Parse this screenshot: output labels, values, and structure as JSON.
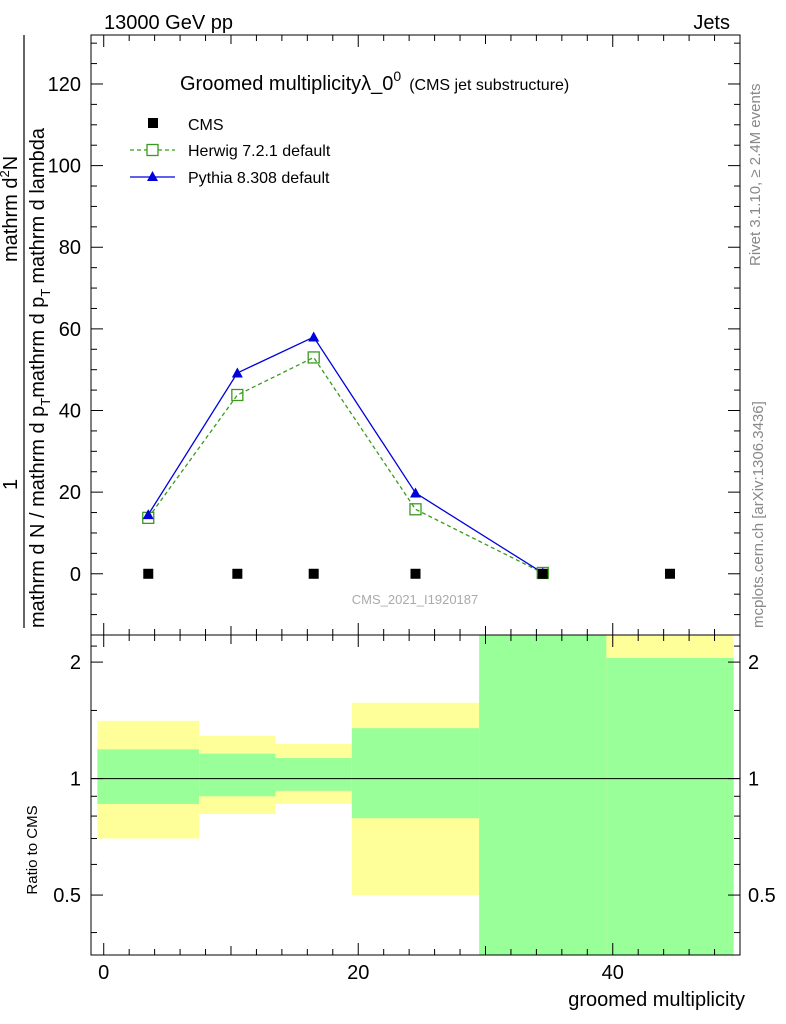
{
  "header": {
    "energy_label": "13000 GeV pp",
    "process_label": "Jets"
  },
  "side_text": {
    "rivet": "Rivet 3.1.10, ≥ 2.4M events",
    "mcplots": "mcplots.cern.ch [arXiv:1306.3436]"
  },
  "watermark": "CMS_2021_I1920187",
  "colors": {
    "cms": "#000000",
    "herwig": "#3a9a1f",
    "pythia": "#0000dd",
    "band_inner": "#99ff99",
    "band_outer": "#ffff99",
    "ratio_line": "#000000"
  },
  "chart_data": [
    {
      "type": "line",
      "title_main": "Groomed multiplicityλ_0",
      "title_sup": "0",
      "title_sub": "(CMS jet substructure)",
      "ylabel_top": "1",
      "ylabel_bottom": "mathrm d N / mathrm d p",
      "ylabel_bottom_sub": "T",
      "ylabel_bottom_cont": "mathrm d p",
      "ylabel_bottom_cont_sub": "T",
      "ylabel_bottom_end": "mathrm d lambda",
      "ylabel_numer": "mathrm d",
      "ylabel_numer_sup": "2",
      "ylabel_numer_end": "N",
      "xlim": [
        -1,
        50
      ],
      "ylim": [
        -15,
        132
      ],
      "yticks": [
        0,
        20,
        40,
        60,
        80,
        100,
        120
      ],
      "ytick_labels": [
        "0",
        "20",
        "40",
        "60",
        "80",
        "100",
        "120"
      ],
      "legend": [
        "CMS",
        "Herwig 7.2.1 default",
        "Pythia 8.308 default"
      ],
      "series": [
        {
          "name": "CMS",
          "x": [
            3.5,
            10.5,
            16.5,
            24.5,
            34.5,
            44.5
          ],
          "values": [
            0,
            0,
            0,
            0,
            0,
            0
          ]
        },
        {
          "name": "Herwig 7.2.1 default",
          "x": [
            3.5,
            10.5,
            16.5,
            24.5,
            34.5
          ],
          "values": [
            13.7,
            43.8,
            53.0,
            15.8,
            0.2
          ]
        },
        {
          "name": "Pythia 8.308 default",
          "x": [
            3.5,
            10.5,
            16.5,
            24.5,
            34.5
          ],
          "values": [
            14.5,
            49.2,
            58.0,
            19.8,
            0.2
          ]
        }
      ]
    },
    {
      "type": "area",
      "ylabel": "Ratio to CMS",
      "xlabel": "groomed multiplicity",
      "xlim": [
        -1,
        50
      ],
      "ylim": [
        0.35,
        2.35
      ],
      "xticks": [
        0,
        20,
        40
      ],
      "xtick_labels": [
        "0",
        "20",
        "40"
      ],
      "yticks": [
        0.5,
        1,
        2
      ],
      "ytick_labels": [
        "0.5",
        "1",
        "2"
      ],
      "ratio_line": 1,
      "bins": [
        {
          "lo": -0.5,
          "hi": 7.5,
          "inner": [
            0.86,
            1.19
          ],
          "outer": [
            0.7,
            1.41
          ]
        },
        {
          "lo": 7.5,
          "hi": 13.5,
          "inner": [
            0.9,
            1.16
          ],
          "outer": [
            0.81,
            1.29
          ]
        },
        {
          "lo": 13.5,
          "hi": 19.5,
          "inner": [
            0.93,
            1.13
          ],
          "outer": [
            0.86,
            1.23
          ]
        },
        {
          "lo": 19.5,
          "hi": 29.5,
          "inner": [
            0.79,
            1.35
          ],
          "outer": [
            0.5,
            1.57
          ]
        },
        {
          "lo": 29.5,
          "hi": 39.5,
          "inner": [
            0.35,
            2.35
          ],
          "outer": [
            0.35,
            2.35
          ]
        },
        {
          "lo": 39.5,
          "hi": 49.5,
          "inner": [
            0.35,
            2.05
          ],
          "outer": [
            0.35,
            2.35
          ]
        }
      ]
    }
  ]
}
